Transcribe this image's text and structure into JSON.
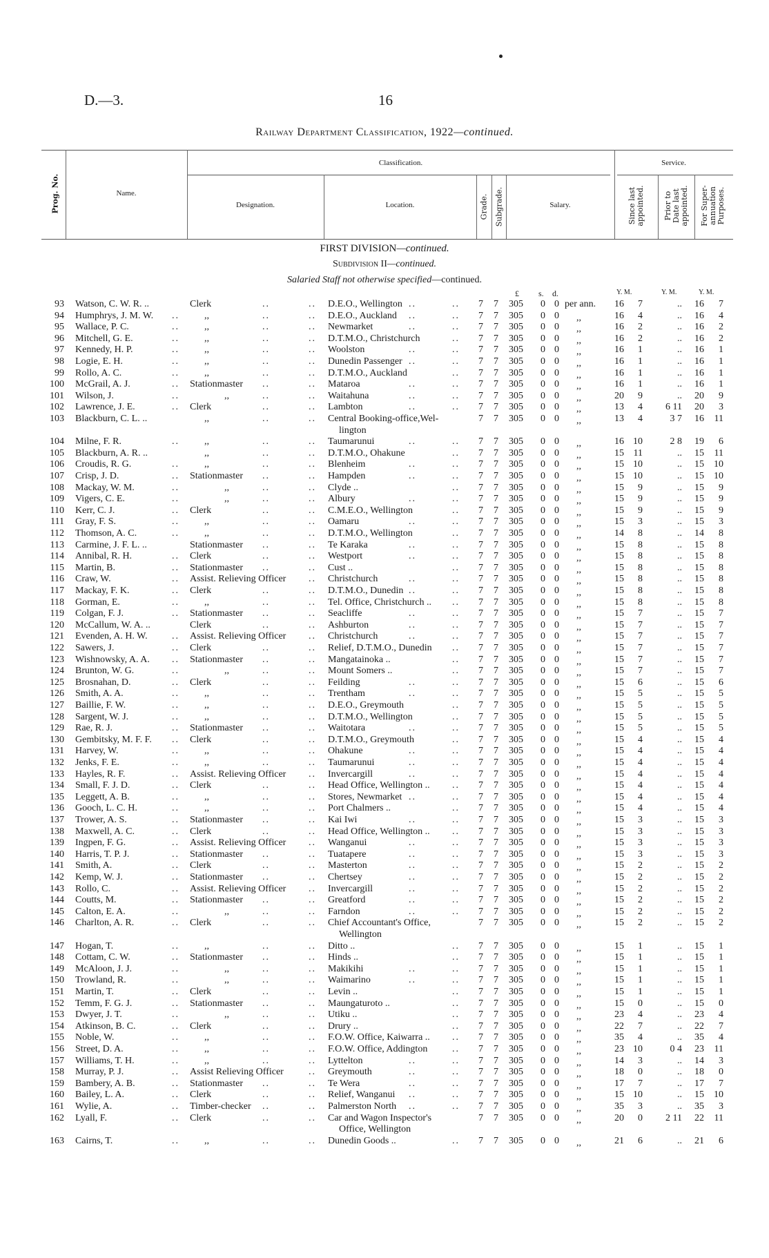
{
  "page": {
    "reference": "D.—3.",
    "number": "16",
    "title_main": "Railway Department Classification, 1922",
    "title_cont": "—continued."
  },
  "header": {
    "prog_no": "Prog. No.",
    "name": "Name.",
    "classification": "Classification.",
    "designation": "Designation.",
    "location": "Location.",
    "grade": "Grade.",
    "subgrade": "Subgrade.",
    "salary": "Salary.",
    "service": "Service.",
    "since_last": [
      "Since last",
      "appointed."
    ],
    "prior_to": [
      "Prior to",
      "Date last",
      "appointed."
    ],
    "for_super": [
      "For Super-",
      "annuation",
      "Purposes."
    ]
  },
  "sections": {
    "division": "FIRST DIVISION",
    "division_cont": "—continued.",
    "subdivision": "Subdivision II",
    "subdivision_cont": "—continued.",
    "staff": "Salaried Staff not otherwise specified",
    "staff_cont": "—continued."
  },
  "units": {
    "pounds": "£",
    "shillings": "s.",
    "pence": "d.",
    "since": "Y. M.",
    "prior": "Y. M.",
    "super": "Y. M."
  },
  "leader": "..",
  "columns": [
    "prog",
    "name",
    "designation",
    "location",
    "location_cont",
    "grade",
    "subgrade",
    "pounds",
    "shillings",
    "pence",
    "period",
    "since_y",
    "since_m",
    "prior",
    "super_y",
    "super_m"
  ],
  "rows": [
    [
      "93",
      "Watson, C. W. R. ..",
      "Clerk",
      "D.E.O., Wellington",
      "",
      "7",
      "7",
      "305",
      "0",
      "0",
      "per ann.",
      "16",
      "7",
      "..",
      "16",
      "7"
    ],
    [
      "94",
      "Humphrys, J. M. W.",
      ",,",
      "D.E.O., Auckland",
      "",
      "7",
      "7",
      "305",
      "0",
      "0",
      ",,",
      "16",
      "4",
      "..",
      "16",
      "4"
    ],
    [
      "95",
      "Wallace, P. C.",
      ",,",
      "Newmarket",
      "",
      "7",
      "7",
      "305",
      "0",
      "0",
      ",,",
      "16",
      "2",
      "..",
      "16",
      "2"
    ],
    [
      "96",
      "Mitchell, G. E.",
      ",,",
      "D.T.M.O., Christchurch",
      "",
      "7",
      "7",
      "305",
      "0",
      "0",
      ",,",
      "16",
      "2",
      "..",
      "16",
      "2"
    ],
    [
      "97",
      "Kennedy, H. P.",
      ",,",
      "Woolston",
      "",
      "7",
      "7",
      "305",
      "0",
      "0",
      ",,",
      "16",
      "1",
      "..",
      "16",
      "1"
    ],
    [
      "98",
      "Logie, E. H.",
      ",,",
      "Dunedin Passenger",
      "",
      "7",
      "7",
      "305",
      "0",
      "0",
      ",,",
      "16",
      "1",
      "..",
      "16",
      "1"
    ],
    [
      "99",
      "Rollo, A. C.",
      ",,",
      "D.T.M.O., Auckland",
      "",
      "7",
      "7",
      "305",
      "0",
      "0",
      ",,",
      "16",
      "1",
      "..",
      "16",
      "1"
    ],
    [
      "100",
      "McGrail, A. J.",
      "Stationmaster",
      "Mataroa",
      "",
      "7",
      "7",
      "305",
      "0",
      "0",
      ",,",
      "16",
      "1",
      "..",
      "16",
      "1"
    ],
    [
      "101",
      "Wilson, J.",
      ",,",
      "Waitahuna",
      "",
      "7",
      "7",
      "305",
      "0",
      "0",
      ",,",
      "20",
      "9",
      "..",
      "20",
      "9"
    ],
    [
      "102",
      "Lawrence, J. E.",
      "Clerk",
      "Lambton",
      "",
      "7",
      "7",
      "305",
      "0",
      "0",
      ",,",
      "13",
      "4",
      "6 11",
      "20",
      "3"
    ],
    [
      "103",
      "Blackburn, C. L. ..",
      ",,",
      "Central Booking-office,Wel-",
      "lington",
      "7",
      "7",
      "305",
      "0",
      "0",
      ",,",
      "13",
      "4",
      "3  7",
      "16",
      "11"
    ],
    [
      "104",
      "Milne, F. R.",
      ",,",
      "Taumarunui",
      "",
      "7",
      "7",
      "305",
      "0",
      "0",
      ",,",
      "16",
      "10",
      "2  8",
      "19",
      "6"
    ],
    [
      "105",
      "Blackburn, A. R. ..",
      ",,",
      "D.T.M.O., Ohakune",
      "",
      "7",
      "7",
      "305",
      "0",
      "0",
      ",,",
      "15",
      "11",
      "..",
      "15",
      "11"
    ],
    [
      "106",
      "Croudis, R. G.",
      ",,",
      "Blenheim",
      "",
      "7",
      "7",
      "305",
      "0",
      "0",
      ",,",
      "15",
      "10",
      "..",
      "15",
      "10"
    ],
    [
      "107",
      "Crisp, J. D.",
      "Stationmaster",
      "Hampden",
      "",
      "7",
      "7",
      "305",
      "0",
      "0",
      ",,",
      "15",
      "10",
      "..",
      "15",
      "10"
    ],
    [
      "108",
      "Mackay, W. M.",
      ",,",
      "Clyde ..",
      "",
      "7",
      "7",
      "305",
      "0",
      "0",
      ",,",
      "15",
      "9",
      "..",
      "15",
      "9"
    ],
    [
      "109",
      "Vigers, C. E.",
      ",,",
      "Albury",
      "",
      "7",
      "7",
      "305",
      "0",
      "0",
      ",,",
      "15",
      "9",
      "..",
      "15",
      "9"
    ],
    [
      "110",
      "Kerr, C. J.",
      "Clerk",
      "C.M.E.O., Wellington",
      "",
      "7",
      "7",
      "305",
      "0",
      "0",
      ",,",
      "15",
      "9",
      "..",
      "15",
      "9"
    ],
    [
      "111",
      "Gray, F. S.",
      ",,",
      "Oamaru",
      "",
      "7",
      "7",
      "305",
      "0",
      "0",
      ",,",
      "15",
      "3",
      "..",
      "15",
      "3"
    ],
    [
      "112",
      "Thomson, A. C.",
      ",,",
      "D.T.M.O., Wellington",
      "",
      "7",
      "7",
      "305",
      "0",
      "0",
      ",,",
      "14",
      "8",
      "..",
      "14",
      "8"
    ],
    [
      "113",
      "Carmine, J. F. L. ..",
      "Stationmaster",
      "Te Karaka",
      "",
      "7",
      "7",
      "305",
      "0",
      "0",
      ",,",
      "15",
      "8",
      "..",
      "15",
      "8"
    ],
    [
      "114",
      "Annibal, R. H.",
      "Clerk",
      "Westport",
      "",
      "7",
      "7",
      "305",
      "0",
      "0",
      ",,",
      "15",
      "8",
      "..",
      "15",
      "8"
    ],
    [
      "115",
      "Martin, B.",
      "Stationmaster",
      "Cust ..",
      "",
      "7",
      "7",
      "305",
      "0",
      "0",
      ",,",
      "15",
      "8",
      "..",
      "15",
      "8"
    ],
    [
      "116",
      "Craw, W.",
      "Assist. Relieving Officer",
      "Christchurch",
      "",
      "7",
      "7",
      "305",
      "0",
      "0",
      ",,",
      "15",
      "8",
      "..",
      "15",
      "8"
    ],
    [
      "117",
      "Mackay, F. K.",
      "Clerk",
      "D.T.M.O., Dunedin",
      "",
      "7",
      "7",
      "305",
      "0",
      "0",
      ",,",
      "15",
      "8",
      "..",
      "15",
      "8"
    ],
    [
      "118",
      "Gorman, E.",
      ",,",
      "Tel. Office, Christchurch ..",
      "",
      "7",
      "7",
      "305",
      "0",
      "0",
      ",,",
      "15",
      "8",
      "..",
      "15",
      "8"
    ],
    [
      "119",
      "Colgan, F. J.",
      "Stationmaster",
      "Seacliffe",
      "",
      "7",
      "7",
      "305",
      "0",
      "0",
      ",,",
      "15",
      "7",
      "..",
      "15",
      "7"
    ],
    [
      "120",
      "McCallum, W. A. ..",
      "Clerk",
      "Ashburton",
      "",
      "7",
      "7",
      "305",
      "0",
      "0",
      ",,",
      "15",
      "7",
      "..",
      "15",
      "7"
    ],
    [
      "121",
      "Evenden, A. H. W.",
      "Assist. Relieving Officer",
      "Christchurch",
      "",
      "7",
      "7",
      "305",
      "0",
      "0",
      ",,",
      "15",
      "7",
      "..",
      "15",
      "7"
    ],
    [
      "122",
      "Sawers, J.",
      "Clerk",
      "Relief, D.T.M.O., Dunedin",
      "",
      "7",
      "7",
      "305",
      "0",
      "0",
      ",,",
      "15",
      "7",
      "..",
      "15",
      "7"
    ],
    [
      "123",
      "Wishnowsky, A. A.",
      "Stationmaster",
      "Mangatainoka ..",
      "",
      "7",
      "7",
      "305",
      "0",
      "0",
      ",,",
      "15",
      "7",
      "..",
      "15",
      "7"
    ],
    [
      "124",
      "Brunton, W. G.",
      ",,",
      "Mount Somers ..",
      "",
      "7",
      "7",
      "305",
      "0",
      "0",
      ",,",
      "15",
      "7",
      "..",
      "15",
      "7"
    ],
    [
      "125",
      "Brosnahan, D.",
      "Clerk",
      "Feilding",
      "",
      "7",
      "7",
      "305",
      "0",
      "0",
      ",,",
      "15",
      "6",
      "..",
      "15",
      "6"
    ],
    [
      "126",
      "Smith, A. A.",
      ",,",
      "Trentham",
      "",
      "7",
      "7",
      "305",
      "0",
      "0",
      ",,",
      "15",
      "5",
      "..",
      "15",
      "5"
    ],
    [
      "127",
      "Baillie, F. W.",
      ",,",
      "D.E.O., Greymouth",
      "",
      "7",
      "7",
      "305",
      "0",
      "0",
      ",,",
      "15",
      "5",
      "..",
      "15",
      "5"
    ],
    [
      "128",
      "Sargent, W. J.",
      ",,",
      "D.T.M.O., Wellington",
      "",
      "7",
      "7",
      "305",
      "0",
      "0",
      ",,",
      "15",
      "5",
      "..",
      "15",
      "5"
    ],
    [
      "129",
      "Rae, R. J.",
      "Stationmaster",
      "Waitotara",
      "",
      "7",
      "7",
      "305",
      "0",
      "0",
      ",,",
      "15",
      "5",
      "..",
      "15",
      "5"
    ],
    [
      "130",
      "Gembitsky, M. F. F.",
      "Clerk",
      "D.T.M.O., Greymouth",
      "",
      "7",
      "7",
      "305",
      "0",
      "0",
      ",,",
      "15",
      "4",
      "..",
      "15",
      "4"
    ],
    [
      "131",
      "Harvey, W.",
      ",,",
      "Ohakune",
      "",
      "7",
      "7",
      "305",
      "0",
      "0",
      ",,",
      "15",
      "4",
      "..",
      "15",
      "4"
    ],
    [
      "132",
      "Jenks, F. E.",
      ",,",
      "Taumarunui",
      "",
      "7",
      "7",
      "305",
      "0",
      "0",
      ",,",
      "15",
      "4",
      "..",
      "15",
      "4"
    ],
    [
      "133",
      "Hayles, R. F.",
      "Assist. Relieving Officer",
      "Invercargill",
      "",
      "7",
      "7",
      "305",
      "0",
      "0",
      ",,",
      "15",
      "4",
      "..",
      "15",
      "4"
    ],
    [
      "134",
      "Small, F. J. D.",
      "Clerk",
      "Head Office, Wellington ..",
      "",
      "7",
      "7",
      "305",
      "0",
      "0",
      ",,",
      "15",
      "4",
      "..",
      "15",
      "4"
    ],
    [
      "135",
      "Leggett, A. B.",
      ",,",
      "Stores, Newmarket",
      "",
      "7",
      "7",
      "305",
      "0",
      "0",
      ",,",
      "15",
      "4",
      "..",
      "15",
      "4"
    ],
    [
      "136",
      "Gooch, L. C. H.",
      ",,",
      "Port Chalmers ..",
      "",
      "7",
      "7",
      "305",
      "0",
      "0",
      ",,",
      "15",
      "4",
      "..",
      "15",
      "4"
    ],
    [
      "137",
      "Trower, A. S.",
      "Stationmaster",
      "Kai Iwi",
      "",
      "7",
      "7",
      "305",
      "0",
      "0",
      ",,",
      "15",
      "3",
      "..",
      "15",
      "3"
    ],
    [
      "138",
      "Maxwell, A. C.",
      "Clerk",
      "Head Office, Wellington ..",
      "",
      "7",
      "7",
      "305",
      "0",
      "0",
      ",,",
      "15",
      "3",
      "..",
      "15",
      "3"
    ],
    [
      "139",
      "Ingpen, F. G.",
      "Assist. Relieving Officer",
      "Wanganui",
      "",
      "7",
      "7",
      "305",
      "0",
      "0",
      ",,",
      "15",
      "3",
      "..",
      "15",
      "3"
    ],
    [
      "140",
      "Harris, T. P. J.",
      "Stationmaster",
      "Tuatapere",
      "",
      "7",
      "7",
      "305",
      "0",
      "0",
      ",,",
      "15",
      "3",
      "..",
      "15",
      "3"
    ],
    [
      "141",
      "Smith, A.",
      "Clerk",
      "Masterton",
      "",
      "7",
      "7",
      "305",
      "0",
      "0",
      ",,",
      "15",
      "2",
      "..",
      "15",
      "2"
    ],
    [
      "142",
      "Kemp, W. J.",
      "Stationmaster",
      "Chertsey",
      "",
      "7",
      "7",
      "305",
      "0",
      "0",
      ",,",
      "15",
      "2",
      "..",
      "15",
      "2"
    ],
    [
      "143",
      "Rollo, C.",
      "Assist. Relieving Officer",
      "Invercargill",
      "",
      "7",
      "7",
      "305",
      "0",
      "0",
      ",,",
      "15",
      "2",
      "..",
      "15",
      "2"
    ],
    [
      "144",
      "Coutts, M.",
      "Stationmaster",
      "Greatford",
      "",
      "7",
      "7",
      "305",
      "0",
      "0",
      ",,",
      "15",
      "2",
      "..",
      "15",
      "2"
    ],
    [
      "145",
      "Calton, E. A.",
      ",,",
      "Farndon",
      "",
      "7",
      "7",
      "305",
      "0",
      "0",
      ",,",
      "15",
      "2",
      "..",
      "15",
      "2"
    ],
    [
      "146",
      "Charlton, A. R.",
      "Clerk",
      "Chief Accountant's Office,",
      "Wellington",
      "7",
      "7",
      "305",
      "0",
      "0",
      ",,",
      "15",
      "2",
      "..",
      "15",
      "2"
    ],
    [
      "147",
      "Hogan, T.",
      ",,",
      "Ditto ..",
      "",
      "7",
      "7",
      "305",
      "0",
      "0",
      ",,",
      "15",
      "1",
      "..",
      "15",
      "1"
    ],
    [
      "148",
      "Cottam, C. W.",
      "Stationmaster",
      "Hinds ..",
      "",
      "7",
      "7",
      "305",
      "0",
      "0",
      ",,",
      "15",
      "1",
      "..",
      "15",
      "1"
    ],
    [
      "149",
      "McAloon, J. J.",
      ",,",
      "Makikihi",
      "",
      "7",
      "7",
      "305",
      "0",
      "0",
      ",,",
      "15",
      "1",
      "..",
      "15",
      "1"
    ],
    [
      "150",
      "Trowland, R.",
      ",,",
      "Waimarino",
      "",
      "7",
      "7",
      "305",
      "0",
      "0",
      ",,",
      "15",
      "1",
      "..",
      "15",
      "1"
    ],
    [
      "151",
      "Martin, T.",
      "Clerk",
      "Levin ..",
      "",
      "7",
      "7",
      "305",
      "0",
      "0",
      ",,",
      "15",
      "1",
      "..",
      "15",
      "1"
    ],
    [
      "152",
      "Temm, F. G. J.",
      "Stationmaster",
      "Maungaturoto ..",
      "",
      "7",
      "7",
      "305",
      "0",
      "0",
      ",,",
      "15",
      "0",
      "..",
      "15",
      "0"
    ],
    [
      "153",
      "Dwyer, J. T.",
      ",,",
      "Utiku ..",
      "",
      "7",
      "7",
      "305",
      "0",
      "0",
      ",,",
      "23",
      "4",
      "..",
      "23",
      "4"
    ],
    [
      "154",
      "Atkinson, B. C.",
      "Clerk",
      "Drury ..",
      "",
      "7",
      "7",
      "305",
      "0",
      "0",
      ",,",
      "22",
      "7",
      "..",
      "22",
      "7"
    ],
    [
      "155",
      "Noble, W.",
      ",,",
      "F.O.W. Office, Kaiwarra ..",
      "",
      "7",
      "7",
      "305",
      "0",
      "0",
      ",,",
      "35",
      "4",
      "..",
      "35",
      "4"
    ],
    [
      "156",
      "Street, D. A.",
      ",,",
      "F.O.W. Office, Addington",
      "",
      "7",
      "7",
      "305",
      "0",
      "0",
      ",,",
      "23",
      "10",
      "0  4",
      "23",
      "11"
    ],
    [
      "157",
      "Williams, T. H.",
      ",,",
      "Lyttelton",
      "",
      "7",
      "7",
      "305",
      "0",
      "0",
      ",,",
      "14",
      "3",
      "..",
      "14",
      "3"
    ],
    [
      "158",
      "Murray, P. J.",
      "Assist Relieving Officer",
      "Greymouth",
      "",
      "7",
      "7",
      "305",
      "0",
      "0",
      ",,",
      "18",
      "0",
      "..",
      "18",
      "0"
    ],
    [
      "159",
      "Bambery, A. B.",
      "Stationmaster",
      "Te Wera",
      "",
      "7",
      "7",
      "305",
      "0",
      "0",
      ",,",
      "17",
      "7",
      "..",
      "17",
      "7"
    ],
    [
      "160",
      "Bailey, L. A.",
      "Clerk",
      "Relief, Wanganui",
      "",
      "7",
      "7",
      "305",
      "0",
      "0",
      ",,",
      "15",
      "10",
      "..",
      "15",
      "10"
    ],
    [
      "161",
      "Wylie, A.",
      "Timber-checker",
      "Palmerston North",
      "",
      "7",
      "7",
      "305",
      "0",
      "0",
      ",,",
      "35",
      "3",
      "..",
      "35",
      "3"
    ],
    [
      "162",
      "Lyall, F.",
      "Clerk",
      "Car and Wagon Inspector's",
      "Office, Wellington",
      "7",
      "7",
      "305",
      "0",
      "0",
      ",,",
      "20",
      "0",
      "2 11",
      "22",
      "11"
    ],
    [
      "163",
      "Cairns, T.",
      ",,",
      "Dunedin Goods ..",
      "",
      "7",
      "7",
      "305",
      "0",
      "0",
      ",,",
      "21",
      "6",
      "..",
      "21",
      "6"
    ]
  ]
}
